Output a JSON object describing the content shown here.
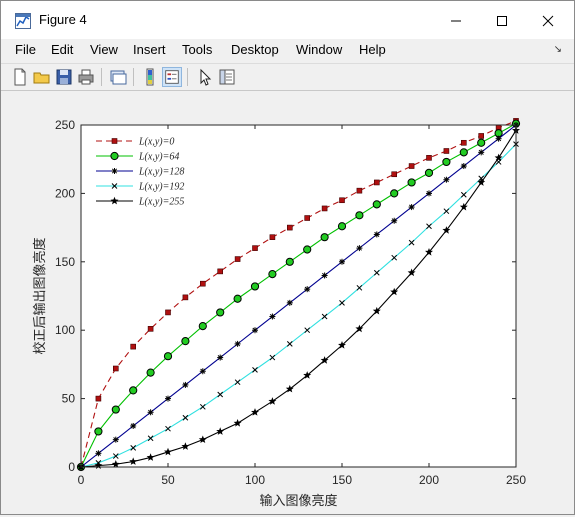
{
  "window": {
    "title": "Figure 4"
  },
  "menu": [
    "File",
    "Edit",
    "View",
    "Insert",
    "Tools",
    "Desktop",
    "Window",
    "Help"
  ],
  "toolbar_icons": [
    "new-figure-icon",
    "open-file-icon",
    "save-icon",
    "print-icon",
    "link-plot-icon",
    "insert-colorbar-icon",
    "insert-legend-icon",
    "edit-plot-icon",
    "property-inspector-icon"
  ],
  "colors": {
    "series_0": "#b01010",
    "series_64": "#00c000",
    "series_128": "#000090",
    "series_192": "#30e0e0",
    "series_255": "#000000",
    "marker_64_fill": "#22cc22"
  },
  "chart_data": {
    "type": "line",
    "xlabel": "输入图像亮度",
    "ylabel": "校正后输出图像亮度",
    "xlim": [
      0,
      250
    ],
    "ylim": [
      0,
      250
    ],
    "xticks": [
      0,
      50,
      100,
      150,
      200,
      250
    ],
    "yticks": [
      0,
      50,
      100,
      150,
      200,
      250
    ],
    "grid": false,
    "legend_position": "top-left",
    "x": [
      0,
      10,
      20,
      30,
      40,
      50,
      60,
      70,
      80,
      90,
      100,
      110,
      120,
      130,
      140,
      150,
      160,
      170,
      180,
      190,
      200,
      210,
      220,
      230,
      240,
      250
    ],
    "series": [
      {
        "name": "L(x,y)=0",
        "line": "dashed",
        "marker": "square",
        "values": [
          0,
          50,
          72,
          88,
          101,
          113,
          124,
          134,
          143,
          152,
          160,
          168,
          175,
          182,
          189,
          195,
          202,
          208,
          214,
          220,
          226,
          231,
          237,
          242,
          248,
          253
        ]
      },
      {
        "name": "L(x,y)=64",
        "line": "solid",
        "marker": "circle",
        "values": [
          0,
          26,
          42,
          56,
          69,
          81,
          92,
          103,
          113,
          123,
          132,
          141,
          150,
          159,
          168,
          176,
          184,
          192,
          200,
          208,
          215,
          223,
          230,
          237,
          244,
          251
        ]
      },
      {
        "name": "L(x,y)=128",
        "line": "solid",
        "marker": "asterisk",
        "values": [
          0,
          10,
          20,
          30,
          40,
          50,
          60,
          70,
          80,
          90,
          100,
          110,
          120,
          130,
          140,
          150,
          160,
          170,
          180,
          190,
          200,
          210,
          220,
          230,
          240,
          250
        ]
      },
      {
        "name": "L(x,y)=192",
        "line": "solid",
        "marker": "x",
        "values": [
          0,
          3,
          8,
          14,
          21,
          28,
          36,
          44,
          53,
          62,
          71,
          80,
          90,
          100,
          110,
          120,
          131,
          142,
          153,
          164,
          176,
          187,
          199,
          211,
          223,
          236
        ]
      },
      {
        "name": "L(x,y)=255",
        "line": "solid",
        "marker": "star",
        "values": [
          0,
          1,
          2,
          4,
          7,
          11,
          15,
          20,
          26,
          32,
          40,
          48,
          57,
          67,
          78,
          89,
          101,
          114,
          128,
          142,
          157,
          173,
          190,
          208,
          226,
          246
        ]
      }
    ]
  }
}
